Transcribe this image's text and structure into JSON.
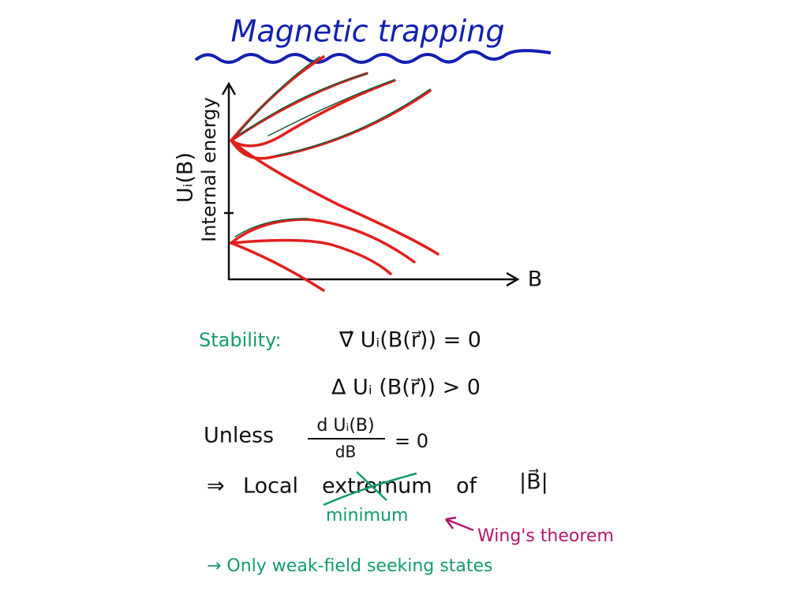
{
  "title": "Magnetic trapping",
  "graph": {
    "y_label_symbol": "Uᵢ(B)",
    "y_label_text": "Internal energy",
    "x_label": "B"
  },
  "stability": {
    "label": "Stability:",
    "gradient_condition": "∇⃗ Uᵢ(B(r⃗)) = 0",
    "laplacian_condition": "Δ Uᵢ (B(r⃗)) > 0"
  },
  "unless": {
    "word": "Unless",
    "numerator": "d Uᵢ(B)",
    "denominator": "dB",
    "rhs": "= 0"
  },
  "implication": {
    "arrow": "⇒",
    "text": "Local",
    "crossed_word": "extremum",
    "suffix": "of",
    "field": "|B⃗|",
    "correction": "minimum",
    "theorem": "Wing's theorem"
  },
  "conclusion": "→ Only weak-field seeking states"
}
